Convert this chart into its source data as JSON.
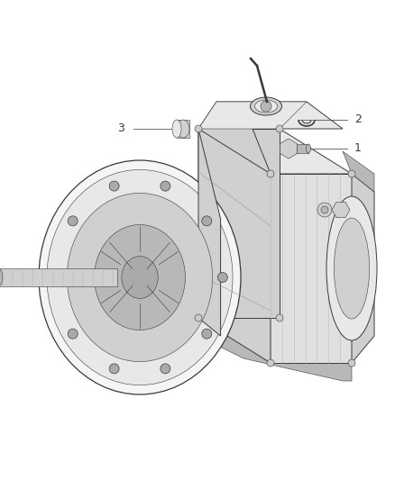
{
  "bg_color": "#ffffff",
  "line_color": "#3a3a3a",
  "fill_light": "#e8e8e8",
  "fill_mid": "#d0d0d0",
  "fill_dark": "#b8b8b8",
  "fill_white": "#f5f5f5",
  "label1_text": "1",
  "label2_text": "2",
  "label3_text": "3",
  "label_fontsize": 9,
  "callout_line_color": "#555555",
  "part_icon_color": "#888888"
}
